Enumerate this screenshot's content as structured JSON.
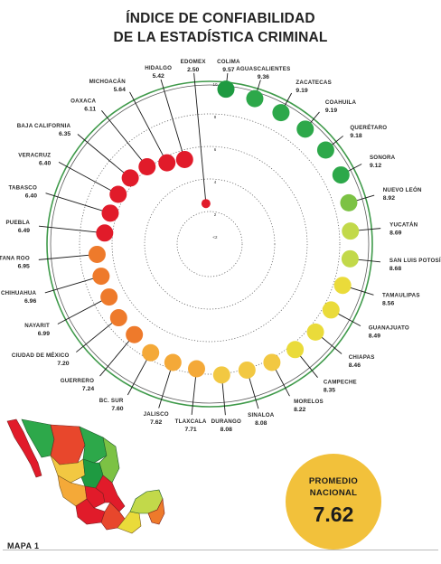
{
  "title_line1": "ÍNDICE DE CONFIABILIDAD",
  "title_line2": "DE LA ESTADÍSTICA CRIMINAL",
  "promedio": {
    "label": "PROMEDIO\nNACIONAL",
    "value": "7.62"
  },
  "map_label": "MAPA 1",
  "chart_data": {
    "type": "radial-lollipop",
    "title": "ÍNDICE DE CONFIABILIDAD DE LA ESTADÍSTICA CRIMINAL",
    "rlim": [
      0,
      10
    ],
    "ring_ticks": [
      "10",
      "8",
      "6",
      "4",
      "2",
      "<2"
    ],
    "grid": true,
    "colors": [
      "#e11b2a",
      "#e8472c",
      "#ee7a2b",
      "#f4a938",
      "#f2c842",
      "#eadb3a",
      "#c2d94a",
      "#7cc244",
      "#2da84a",
      "#1e9a41"
    ],
    "states": [
      {
        "name": "COLIMA",
        "value": 9.57
      },
      {
        "name": "AGUASCALIENTES",
        "value": 9.36
      },
      {
        "name": "ZACATECAS",
        "value": 9.19
      },
      {
        "name": "COAHUILA",
        "value": 9.19
      },
      {
        "name": "QUERÉTARO",
        "value": 9.18
      },
      {
        "name": "SONORA",
        "value": 9.12
      },
      {
        "name": "NUEVO LEÓN",
        "value": 8.92
      },
      {
        "name": "YUCATÁN",
        "value": 8.69
      },
      {
        "name": "SAN LUIS POTOSÍ",
        "value": 8.68
      },
      {
        "name": "TAMAULIPAS",
        "value": 8.56
      },
      {
        "name": "GUANAJUATO",
        "value": 8.49
      },
      {
        "name": "CHIAPAS",
        "value": 8.46
      },
      {
        "name": "CAMPECHE",
        "value": 8.35
      },
      {
        "name": "MORELOS",
        "value": 8.22
      },
      {
        "name": "SINALOA",
        "value": 8.08
      },
      {
        "name": "DURANGO",
        "value": 8.08
      },
      {
        "name": "TLAXCALA",
        "value": 7.71
      },
      {
        "name": "JALISCO",
        "value": 7.62
      },
      {
        "name": "BC. SUR",
        "value": 7.6
      },
      {
        "name": "GUERRERO",
        "value": 7.24
      },
      {
        "name": "CIUDAD DE MÉXICO",
        "value": 7.2
      },
      {
        "name": "NAYARIT",
        "value": 6.99
      },
      {
        "name": "CHIHUAHUA",
        "value": 6.96
      },
      {
        "name": "QUINTANA ROO",
        "value": 6.95
      },
      {
        "name": "PUEBLA",
        "value": 6.49
      },
      {
        "name": "TABASCO",
        "value": 6.4
      },
      {
        "name": "VERACRUZ",
        "value": 6.4
      },
      {
        "name": "BAJA CALIFORNIA",
        "value": 6.35
      },
      {
        "name": "OAXACA",
        "value": 6.11
      },
      {
        "name": "MICHOACÁN",
        "value": 5.64
      },
      {
        "name": "HIDALGO",
        "value": 5.42
      },
      {
        "name": "EDOMEX",
        "value": 2.5
      }
    ]
  }
}
